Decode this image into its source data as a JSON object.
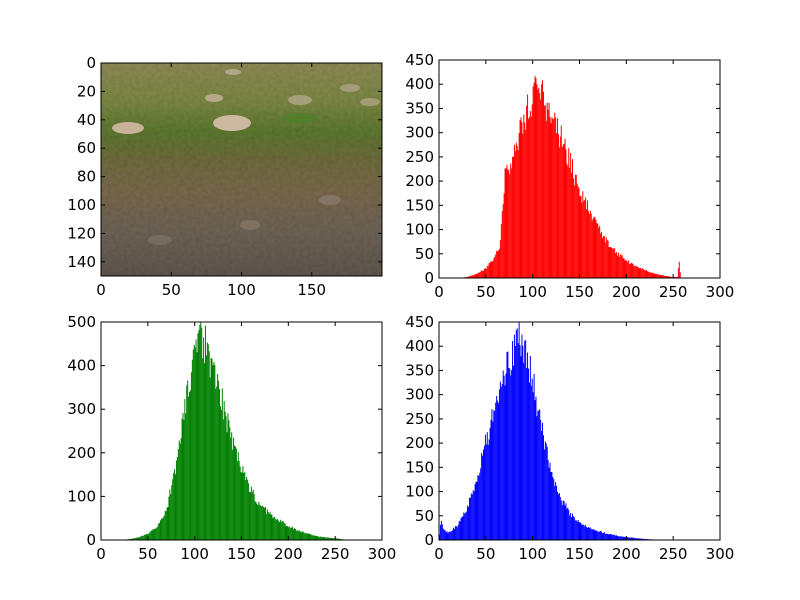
{
  "chart_data": [
    {
      "type": "image",
      "description_visible": "photo of riverbed",
      "xlim": [
        0,
        200
      ],
      "ylim": [
        150,
        0
      ],
      "xticks": [
        "0",
        "50",
        "100",
        "150"
      ],
      "yticks": [
        "0",
        "20",
        "40",
        "60",
        "80",
        "100",
        "120",
        "140"
      ]
    },
    {
      "type": "bar",
      "color": "#ff0000",
      "xlim": [
        0,
        300
      ],
      "ylim": [
        0,
        450
      ],
      "xticks": [
        "0",
        "50",
        "100",
        "150",
        "200",
        "250",
        "300"
      ],
      "yticks": [
        "0",
        "50",
        "100",
        "150",
        "200",
        "250",
        "300",
        "350",
        "400",
        "450"
      ],
      "profile": [
        [
          0,
          0
        ],
        [
          10,
          0
        ],
        [
          20,
          0
        ],
        [
          30,
          2
        ],
        [
          40,
          8
        ],
        [
          50,
          20
        ],
        [
          60,
          45
        ],
        [
          65,
          70
        ],
        [
          70,
          210
        ],
        [
          80,
          260
        ],
        [
          90,
          325
        ],
        [
          100,
          370
        ],
        [
          105,
          395
        ],
        [
          110,
          375
        ],
        [
          120,
          340
        ],
        [
          130,
          290
        ],
        [
          140,
          235
        ],
        [
          150,
          185
        ],
        [
          160,
          140
        ],
        [
          170,
          105
        ],
        [
          180,
          75
        ],
        [
          190,
          52
        ],
        [
          200,
          36
        ],
        [
          210,
          25
        ],
        [
          220,
          16
        ],
        [
          230,
          9
        ],
        [
          240,
          5
        ],
        [
          250,
          2
        ],
        [
          255,
          2
        ],
        [
          256,
          42
        ],
        [
          258,
          0
        ],
        [
          300,
          0
        ]
      ]
    },
    {
      "type": "bar",
      "color": "#008000",
      "xlim": [
        0,
        300
      ],
      "ylim": [
        0,
        500
      ],
      "xticks": [
        "0",
        "50",
        "100",
        "150",
        "200",
        "250",
        "300"
      ],
      "yticks": [
        "0",
        "100",
        "200",
        "300",
        "400",
        "500"
      ],
      "profile": [
        [
          0,
          0
        ],
        [
          20,
          0
        ],
        [
          30,
          2
        ],
        [
          40,
          6
        ],
        [
          50,
          14
        ],
        [
          60,
          30
        ],
        [
          70,
          70
        ],
        [
          80,
          170
        ],
        [
          90,
          320
        ],
        [
          100,
          415
        ],
        [
          105,
          455
        ],
        [
          110,
          450
        ],
        [
          115,
          430
        ],
        [
          120,
          390
        ],
        [
          130,
          310
        ],
        [
          140,
          225
        ],
        [
          150,
          165
        ],
        [
          160,
          115
        ],
        [
          170,
          80
        ],
        [
          180,
          60
        ],
        [
          190,
          45
        ],
        [
          200,
          32
        ],
        [
          210,
          22
        ],
        [
          220,
          15
        ],
        [
          230,
          9
        ],
        [
          240,
          6
        ],
        [
          250,
          4
        ],
        [
          260,
          1
        ],
        [
          270,
          0
        ],
        [
          300,
          0
        ]
      ]
    },
    {
      "type": "bar",
      "color": "#0000ff",
      "xlim": [
        0,
        300
      ],
      "ylim": [
        0,
        450
      ],
      "xticks": [
        "0",
        "50",
        "100",
        "150",
        "200",
        "250",
        "300"
      ],
      "yticks": [
        "0",
        "50",
        "100",
        "150",
        "200",
        "250",
        "300",
        "350",
        "400",
        "450"
      ],
      "profile": [
        [
          0,
          0
        ],
        [
          2,
          45
        ],
        [
          5,
          20
        ],
        [
          10,
          15
        ],
        [
          20,
          30
        ],
        [
          30,
          65
        ],
        [
          40,
          120
        ],
        [
          50,
          200
        ],
        [
          60,
          270
        ],
        [
          70,
          340
        ],
        [
          80,
          400
        ],
        [
          85,
          440
        ],
        [
          90,
          410
        ],
        [
          100,
          330
        ],
        [
          105,
          280
        ],
        [
          110,
          230
        ],
        [
          120,
          140
        ],
        [
          130,
          85
        ],
        [
          140,
          55
        ],
        [
          150,
          35
        ],
        [
          160,
          25
        ],
        [
          170,
          18
        ],
        [
          180,
          13
        ],
        [
          190,
          9
        ],
        [
          200,
          6
        ],
        [
          210,
          4
        ],
        [
          220,
          2
        ],
        [
          230,
          1
        ],
        [
          240,
          0
        ],
        [
          300,
          0
        ]
      ]
    }
  ]
}
